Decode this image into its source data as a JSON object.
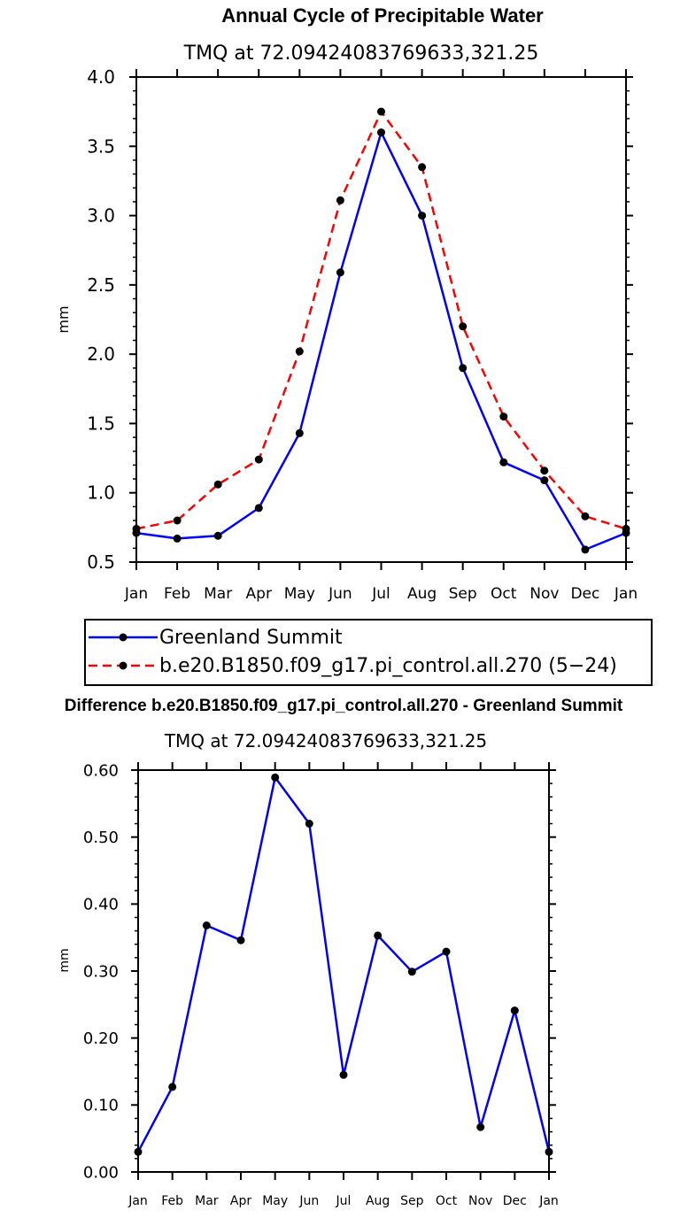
{
  "chart_data": [
    {
      "type": "line",
      "title": "Annual Cycle of Precipitable Water",
      "subtitle": "TMQ at 72.09424083769633,321.25",
      "ylabel": "mm",
      "xlabel": "",
      "ylim": [
        0.5,
        4.0
      ],
      "yticks": [
        "0.5",
        "1.0",
        "1.5",
        "2.0",
        "2.5",
        "3.0",
        "3.5",
        "4.0"
      ],
      "categories": [
        "Jan",
        "Feb",
        "Mar",
        "Apr",
        "May",
        "Jun",
        "Jul",
        "Aug",
        "Sep",
        "Oct",
        "Nov",
        "Dec",
        "Jan"
      ],
      "series": [
        {
          "name": "Greenland Summit",
          "color": "#0000ff",
          "dash": "solid",
          "values": [
            0.71,
            0.67,
            0.69,
            0.89,
            1.43,
            2.59,
            3.6,
            3.0,
            1.9,
            1.22,
            1.09,
            0.59,
            0.71
          ]
        },
        {
          "name": "b.e20.B1850.f09_g17.pi_control.all.270 (5−24)",
          "color": "#ff0000",
          "dash": "dashed",
          "values": [
            0.74,
            0.8,
            1.06,
            1.24,
            2.02,
            3.11,
            3.75,
            3.35,
            2.2,
            1.55,
            1.16,
            0.83,
            0.74
          ]
        }
      ],
      "legend": "below"
    },
    {
      "type": "line",
      "title": "Difference b.e20.B1850.f09_g17.pi_control.all.270 - Greenland Summit",
      "subtitle": "TMQ at 72.09424083769633,321.25",
      "ylabel": "mm",
      "xlabel": "",
      "ylim": [
        0.0,
        0.6
      ],
      "yticks": [
        "0.00",
        "0.10",
        "0.20",
        "0.30",
        "0.40",
        "0.50",
        "0.60"
      ],
      "categories": [
        "Jan",
        "Feb",
        "Mar",
        "Apr",
        "May",
        "Jun",
        "Jul",
        "Aug",
        "Sep",
        "Oct",
        "Nov",
        "Dec",
        "Jan"
      ],
      "series": [
        {
          "name": "Difference",
          "color": "#0000ff",
          "dash": "solid",
          "values": [
            0.03,
            0.127,
            0.368,
            0.346,
            0.589,
            0.52,
            0.145,
            0.353,
            0.299,
            0.329,
            0.067,
            0.241,
            0.03
          ]
        }
      ]
    }
  ]
}
